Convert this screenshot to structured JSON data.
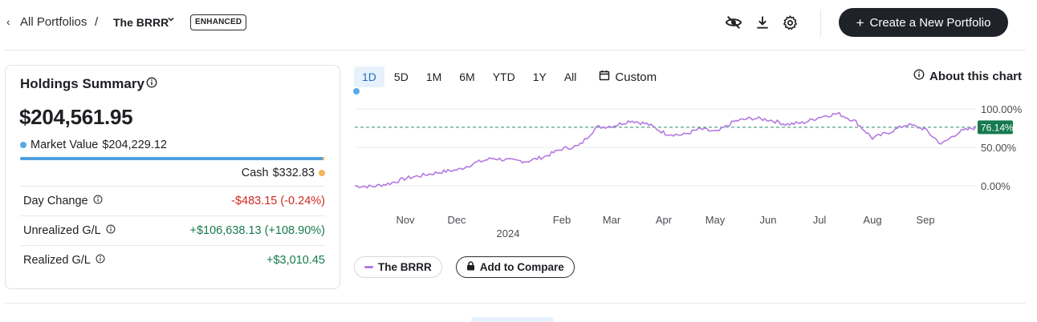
{
  "breadcrumb": {
    "back_glyph": "‹",
    "all_portfolios": "All Portfolios",
    "separator": "/",
    "current": "The BRRR",
    "badge": "ENHANCED"
  },
  "toolbar": {
    "icons": [
      "eye-off-icon",
      "download-icon",
      "gear-icon"
    ],
    "create_label": "Create a New Portfolio"
  },
  "holdings": {
    "title": "Holdings Summary",
    "total": "$204,561.95",
    "market_value_label": "Market Value",
    "market_value": "$204,229.12",
    "cash_label": "Cash",
    "cash": "$332.83",
    "rows": [
      {
        "label": "Day Change",
        "value": "-$483.15 (-0.24%)",
        "tone": "neg"
      },
      {
        "label": "Unrealized G/L",
        "value": "+$106,638.13 (+108.90%)",
        "tone": "pos"
      },
      {
        "label": "Realized G/L",
        "value": "+$3,010.45",
        "tone": "pos"
      }
    ],
    "colors": {
      "market_value": "#5aa9e6",
      "cash": "#f3b55a",
      "negative": "#d0281f",
      "positive": "#157a4f"
    }
  },
  "chart_controls": {
    "ranges": [
      "1D",
      "5D",
      "1M",
      "6M",
      "YTD",
      "1Y",
      "All"
    ],
    "active_range": "1D",
    "custom_label": "Custom",
    "about_label": "About this chart"
  },
  "legend": {
    "series_label": "The BRRR",
    "compare_label": "Add to Compare"
  },
  "chart_data": {
    "type": "line",
    "x_ticks": [
      "Nov",
      "Dec",
      "Feb",
      "Mar",
      "Apr",
      "May",
      "Jun",
      "Jul",
      "Aug",
      "Sep"
    ],
    "year_label": "2024",
    "y_ticks": [
      "100.00%",
      "50.00%",
      "0.00%"
    ],
    "ylim": [
      0,
      100
    ],
    "reference_value": 76.14,
    "reference_label": "76.14%",
    "series": [
      {
        "name": "The BRRR",
        "color": "#b47ae0",
        "x": [
          "Oct 16",
          "Oct 26",
          "Nov 5",
          "Nov 15",
          "Nov 25",
          "Dec 5",
          "Dec 15",
          "Dec 25",
          "Jan 5",
          "Jan 15",
          "Jan 25",
          "Feb 5",
          "Feb 15",
          "Feb 25",
          "Mar 5",
          "Mar 15",
          "Mar 25",
          "Apr 5",
          "Apr 15",
          "Apr 25",
          "May 5",
          "May 15",
          "May 25",
          "Jun 5",
          "Jun 15",
          "Jun 25",
          "Jul 5",
          "Jul 15",
          "Jul 25",
          "Aug 1",
          "Aug 5",
          "Aug 15",
          "Aug 25",
          "Sep 5",
          "Sep 15",
          "Sep 25",
          "Oct 1"
        ],
        "values": [
          0,
          -1,
          3,
          10,
          14,
          18,
          21,
          30,
          36,
          33,
          32,
          38,
          48,
          52,
          76,
          78,
          85,
          80,
          68,
          66,
          74,
          70,
          84,
          88,
          86,
          80,
          82,
          90,
          94,
          84,
          62,
          70,
          80,
          74,
          54,
          70,
          76
        ]
      }
    ],
    "grid": "horizontal",
    "legend_position": "bottom-left"
  }
}
